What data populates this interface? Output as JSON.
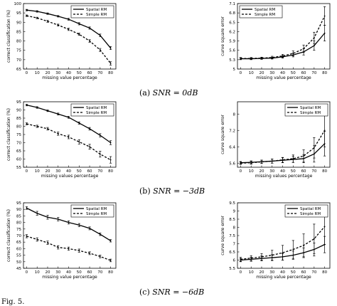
{
  "captions": [
    {
      "label": "(a)",
      "formula": "SNR = 0dB"
    },
    {
      "label": "(b)",
      "formula": "SNR = −3dB"
    },
    {
      "label": "(c)",
      "formula": "SNR = −6dB"
    }
  ],
  "figure_caption_fragment": "Fig. 5.",
  "colors": {
    "line": "#000000",
    "background": "#ffffff"
  },
  "chart_data": [
    {
      "type": "line",
      "panel": "a-left",
      "x": [
        0,
        10,
        20,
        30,
        40,
        50,
        60,
        70,
        80
      ],
      "xlabel": "missing value percentage",
      "ylabel": "correct classification (%)",
      "xticks": [
        "0",
        "10",
        "20",
        "30",
        "40",
        "50",
        "60",
        "70",
        "80"
      ],
      "ylim": [
        65,
        100
      ],
      "yticks": [
        "65",
        "70",
        "75",
        "80",
        "85",
        "90",
        "95",
        "100"
      ],
      "legend": "top-right",
      "series": [
        {
          "name": "Spatial RM",
          "style": "solid",
          "values": [
            96.5,
            95.8,
            94.6,
            93.2,
            91.6,
            89.2,
            86.9,
            83.0,
            76.2
          ],
          "err": [
            0.4,
            0.4,
            0.4,
            0.4,
            0.5,
            0.6,
            0.6,
            0.7,
            0.8
          ]
        },
        {
          "name": "Simple RM",
          "style": "dashed",
          "values": [
            93.5,
            92.3,
            90.5,
            88.5,
            86.2,
            83.6,
            80.0,
            75.2,
            68.0
          ],
          "err": [
            0.4,
            0.4,
            0.5,
            0.5,
            0.6,
            0.6,
            0.7,
            0.8,
            0.9
          ]
        }
      ]
    },
    {
      "type": "line",
      "panel": "a-right",
      "x": [
        0,
        10,
        20,
        30,
        40,
        50,
        60,
        70,
        80
      ],
      "xlabel": "missing value percentage",
      "ylabel": "curve square error",
      "xticks": [
        "0",
        "10",
        "20",
        "30",
        "40",
        "50",
        "60",
        "70",
        "80"
      ],
      "ylim": [
        5,
        7.1
      ],
      "yticks": [
        "5",
        "5.3",
        "5.6",
        "5.9",
        "6.2",
        "6.5",
        "6.8",
        "7.1"
      ],
      "legend": "top-left",
      "series": [
        {
          "name": "Spatial RM",
          "style": "solid",
          "values": [
            5.33,
            5.33,
            5.34,
            5.35,
            5.39,
            5.45,
            5.55,
            5.75,
            6.15
          ],
          "err": [
            0.03,
            0.03,
            0.03,
            0.03,
            0.04,
            0.06,
            0.1,
            0.15,
            0.25
          ]
        },
        {
          "name": "Simple RM",
          "style": "dashed",
          "values": [
            5.34,
            5.34,
            5.35,
            5.37,
            5.42,
            5.5,
            5.65,
            6.0,
            6.7
          ],
          "err": [
            0.03,
            0.03,
            0.03,
            0.04,
            0.05,
            0.08,
            0.12,
            0.18,
            0.3
          ]
        }
      ]
    },
    {
      "type": "line",
      "panel": "b-left",
      "x": [
        0,
        10,
        20,
        30,
        40,
        50,
        60,
        70,
        80
      ],
      "xlabel": "missing values percentage",
      "ylabel": "correct classification (%)",
      "xticks": [
        "0",
        "10",
        "20",
        "30",
        "40",
        "50",
        "60",
        "70",
        "80"
      ],
      "ylim": [
        55,
        95
      ],
      "yticks": [
        "55",
        "60",
        "65",
        "70",
        "75",
        "80",
        "85",
        "90",
        "95"
      ],
      "legend": "top-right",
      "series": [
        {
          "name": "Spatial RM",
          "style": "solid",
          "values": [
            93.0,
            91.5,
            89.5,
            87.5,
            85.5,
            82.0,
            78.5,
            74.5,
            70.0
          ],
          "err": [
            0.5,
            0.5,
            0.5,
            0.6,
            0.6,
            0.7,
            0.8,
            1.0,
            1.2
          ]
        },
        {
          "name": "Simple RM",
          "style": "dashed",
          "values": [
            81.5,
            80.0,
            78.5,
            75.5,
            73.5,
            70.5,
            67.5,
            63.0,
            59.5
          ],
          "err": [
            0.6,
            0.7,
            0.8,
            1.0,
            1.1,
            1.3,
            1.5,
            1.8,
            2.0
          ]
        }
      ]
    },
    {
      "type": "line",
      "panel": "b-right",
      "x": [
        0,
        10,
        20,
        30,
        40,
        50,
        60,
        70,
        80
      ],
      "xlabel": "missing values percentage",
      "ylabel": "curve square error",
      "xticks": [
        "0",
        "10",
        "20",
        "30",
        "40",
        "50",
        "60",
        "70",
        "80"
      ],
      "ylim": [
        5.4,
        8.6
      ],
      "yticks": [
        "5.6",
        "6.4",
        "7.2",
        "8"
      ],
      "legend": "top-right",
      "series": [
        {
          "name": "Spatial RM",
          "style": "solid",
          "values": [
            5.62,
            5.64,
            5.67,
            5.7,
            5.74,
            5.78,
            5.82,
            6.05,
            6.55
          ],
          "err": [
            0.06,
            0.07,
            0.08,
            0.1,
            0.12,
            0.15,
            0.2,
            0.4,
            0.6
          ]
        },
        {
          "name": "Simple RM",
          "style": "dashed",
          "values": [
            5.6,
            5.62,
            5.66,
            5.7,
            5.76,
            5.82,
            5.95,
            6.35,
            7.2
          ],
          "err": [
            0.06,
            0.07,
            0.08,
            0.1,
            0.12,
            0.18,
            0.3,
            0.5,
            0.8
          ]
        }
      ]
    },
    {
      "type": "line",
      "panel": "c-left",
      "x": [
        0,
        10,
        20,
        30,
        40,
        50,
        60,
        70,
        80
      ],
      "xlabel": "missing value percentage",
      "ylabel": "correct classification (%)",
      "xticks": [
        "0",
        "10",
        "20",
        "30",
        "40",
        "50",
        "60",
        "70",
        "80"
      ],
      "ylim": [
        45,
        95
      ],
      "yticks": [
        "45",
        "50",
        "55",
        "60",
        "65",
        "70",
        "75",
        "80",
        "85",
        "90",
        "95"
      ],
      "legend": "top-right",
      "series": [
        {
          "name": "Spatial RM",
          "style": "solid",
          "values": [
            91.0,
            87.0,
            84.0,
            82.5,
            80.0,
            78.0,
            75.5,
            71.0,
            66.0
          ],
          "err": [
            1.0,
            1.5,
            1.5,
            1.3,
            1.2,
            1.2,
            1.1,
            1.0,
            0.9
          ]
        },
        {
          "name": "Simple RM",
          "style": "dashed",
          "values": [
            69.5,
            67.0,
            64.5,
            61.0,
            60.0,
            58.5,
            56.5,
            54.0,
            51.0
          ],
          "err": [
            1.2,
            1.3,
            1.3,
            1.3,
            1.2,
            1.2,
            1.1,
            1.0,
            1.0
          ]
        }
      ]
    },
    {
      "type": "line",
      "panel": "c-right",
      "x": [
        0,
        10,
        20,
        30,
        40,
        50,
        60,
        70,
        80
      ],
      "xlabel": "missing value percentage",
      "ylabel": "curve square error",
      "xticks": [
        "0",
        "10",
        "20",
        "30",
        "40",
        "50",
        "60",
        "70",
        "80"
      ],
      "ylim": [
        5.5,
        9.5
      ],
      "yticks": [
        "5.5",
        "6",
        "6.5",
        "7",
        "7.5",
        "8",
        "8.5",
        "9",
        "9.5"
      ],
      "legend": "top-right",
      "series": [
        {
          "name": "Spatial RM",
          "style": "solid",
          "values": [
            6.0,
            6.05,
            6.1,
            6.15,
            6.2,
            6.3,
            6.45,
            6.65,
            6.95
          ],
          "err": [
            0.1,
            0.12,
            0.15,
            0.18,
            0.2,
            0.25,
            0.3,
            0.4,
            0.5
          ]
        },
        {
          "name": "Simple RM",
          "style": "dashed",
          "values": [
            6.05,
            6.12,
            6.2,
            6.3,
            6.45,
            6.65,
            6.9,
            7.3,
            8.05
          ],
          "err": [
            0.12,
            0.15,
            0.2,
            0.3,
            0.45,
            0.55,
            0.7,
            0.9,
            1.1
          ]
        }
      ]
    }
  ]
}
